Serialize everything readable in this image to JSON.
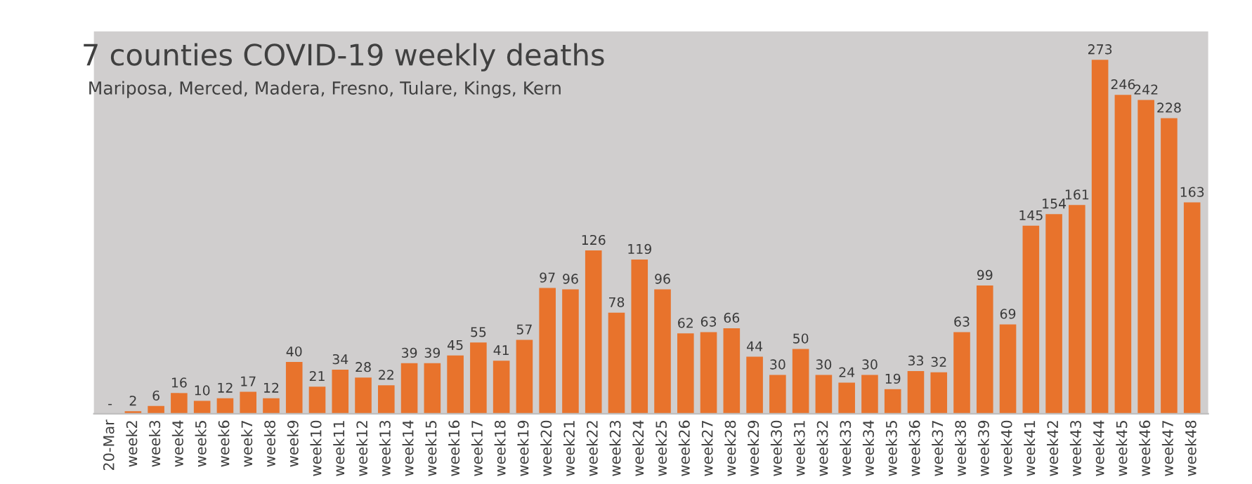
{
  "chart_data": {
    "type": "bar",
    "title": "7 counties COVID-19 weekly deaths",
    "subtitle": "Mariposa, Merced, Madera, Fresno, Tulare, Kings, Kern",
    "categories": [
      "20-Mar",
      "week2",
      "week3",
      "week4",
      "week5",
      "week6",
      "week7",
      "week8",
      "week9",
      "week10",
      "week11",
      "week12",
      "week13",
      "week14",
      "week15",
      "week16",
      "week17",
      "week18",
      "week19",
      "week20",
      "week21",
      "week22",
      "week23",
      "week24",
      "week25",
      "week26",
      "week27",
      "week28",
      "week29",
      "week30",
      "week31",
      "week32",
      "week33",
      "week34",
      "week35",
      "week36",
      "week37",
      "week38",
      "week39",
      "week40",
      "week41",
      "week42",
      "week43",
      "week44",
      "week45",
      "week46",
      "week47",
      "week48"
    ],
    "values": [
      0,
      2,
      6,
      16,
      10,
      12,
      17,
      12,
      40,
      21,
      34,
      28,
      22,
      39,
      39,
      45,
      55,
      41,
      57,
      97,
      96,
      126,
      78,
      119,
      96,
      62,
      63,
      66,
      44,
      30,
      50,
      30,
      24,
      30,
      19,
      33,
      32,
      63,
      99,
      69,
      145,
      154,
      161,
      273,
      246,
      242,
      228,
      163
    ],
    "value_labels": [
      "-",
      "2",
      "6",
      "16",
      "10",
      "12",
      "17",
      "12",
      "40",
      "21",
      "34",
      "28",
      "22",
      "39",
      "39",
      "45",
      "55",
      "41",
      "57",
      "97",
      "96",
      "126",
      "78",
      "119",
      "96",
      "62",
      "63",
      "66",
      "44",
      "30",
      "50",
      "30",
      "24",
      "30",
      "19",
      "33",
      "32",
      "63",
      "99",
      "69",
      "145",
      "154",
      "161",
      "273",
      "246",
      "242",
      "228",
      "163"
    ],
    "color": "#e8732c",
    "grid": false,
    "legend": false
  }
}
